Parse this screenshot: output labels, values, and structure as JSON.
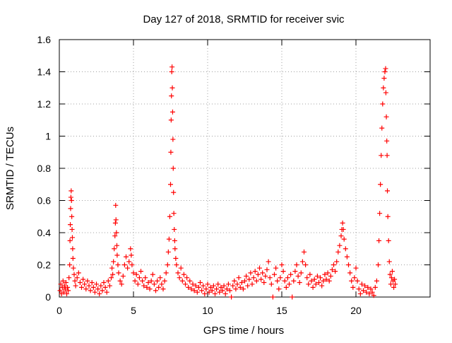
{
  "chart_data": {
    "type": "scatter",
    "title": "Day 127 of 2018, SRMTID for receiver svic",
    "xlabel": "GPS time / hours",
    "ylabel": "SRMTID / TECUs",
    "xlim": [
      0,
      25
    ],
    "ylim": [
      0,
      1.6
    ],
    "xticks": [
      0,
      5,
      10,
      15,
      20
    ],
    "yticks": [
      0,
      0.2,
      0.4,
      0.6,
      0.8,
      1,
      1.2,
      1.4,
      1.6
    ],
    "xtick_labels": [
      "0",
      "5",
      "10",
      "15",
      "20"
    ],
    "ytick_labels": [
      "0",
      "0.2",
      "0.4",
      "0.6",
      "0.8",
      "1",
      "1.2",
      "1.4",
      "1.6"
    ],
    "grid": true,
    "marker": "+",
    "series_color": "#ff0000",
    "series": [
      {
        "name": "SRMTID",
        "points": [
          [
            0.05,
            0.04
          ],
          [
            0.1,
            0.08
          ],
          [
            0.15,
            0.02
          ],
          [
            0.2,
            0.06
          ],
          [
            0.25,
            0.1
          ],
          [
            0.3,
            0.03
          ],
          [
            0.35,
            0.07
          ],
          [
            0.4,
            0.05
          ],
          [
            0.45,
            0.09
          ],
          [
            0.5,
            0.02
          ],
          [
            0.55,
            0.06
          ],
          [
            0.6,
            0.04
          ],
          [
            0.65,
            0.12
          ],
          [
            0.7,
            0.2
          ],
          [
            0.72,
            0.35
          ],
          [
            0.74,
            0.45
          ],
          [
            0.76,
            0.55
          ],
          [
            0.78,
            0.62
          ],
          [
            0.8,
            0.66
          ],
          [
            0.82,
            0.6
          ],
          [
            0.84,
            0.5
          ],
          [
            0.86,
            0.42
          ],
          [
            0.88,
            0.37
          ],
          [
            0.9,
            0.3
          ],
          [
            0.92,
            0.24
          ],
          [
            0.95,
            0.18
          ],
          [
            1.0,
            0.14
          ],
          [
            1.05,
            0.1
          ],
          [
            1.1,
            0.07
          ],
          [
            1.2,
            0.12
          ],
          [
            1.3,
            0.15
          ],
          [
            1.4,
            0.09
          ],
          [
            1.5,
            0.06
          ],
          [
            1.6,
            0.11
          ],
          [
            1.7,
            0.08
          ],
          [
            1.8,
            0.05
          ],
          [
            1.9,
            0.1
          ],
          [
            2.0,
            0.07
          ],
          [
            2.1,
            0.04
          ],
          [
            2.2,
            0.09
          ],
          [
            2.3,
            0.06
          ],
          [
            2.4,
            0.03
          ],
          [
            2.5,
            0.08
          ],
          [
            2.6,
            0.05
          ],
          [
            2.7,
            0.02
          ],
          [
            2.8,
            0.07
          ],
          [
            2.9,
            0.04
          ],
          [
            3.0,
            0.09
          ],
          [
            3.1,
            0.06
          ],
          [
            3.2,
            0.03
          ],
          [
            3.3,
            0.1
          ],
          [
            3.4,
            0.07
          ],
          [
            3.5,
            0.12
          ],
          [
            3.55,
            0.18
          ],
          [
            3.6,
            0.14
          ],
          [
            3.65,
            0.22
          ],
          [
            3.7,
            0.3
          ],
          [
            3.75,
            0.38
          ],
          [
            3.78,
            0.46
          ],
          [
            3.8,
            0.57
          ],
          [
            3.82,
            0.48
          ],
          [
            3.85,
            0.4
          ],
          [
            3.88,
            0.32
          ],
          [
            3.9,
            0.26
          ],
          [
            3.95,
            0.2
          ],
          [
            4.0,
            0.15
          ],
          [
            4.1,
            0.1
          ],
          [
            4.2,
            0.08
          ],
          [
            4.3,
            0.13
          ],
          [
            4.4,
            0.2
          ],
          [
            4.5,
            0.25
          ],
          [
            4.6,
            0.18
          ],
          [
            4.7,
            0.22
          ],
          [
            4.8,
            0.3
          ],
          [
            4.85,
            0.26
          ],
          [
            4.9,
            0.2
          ],
          [
            5.0,
            0.15
          ],
          [
            5.1,
            0.1
          ],
          [
            5.2,
            0.14
          ],
          [
            5.3,
            0.08
          ],
          [
            5.4,
            0.12
          ],
          [
            5.5,
            0.16
          ],
          [
            5.6,
            0.1
          ],
          [
            5.7,
            0.07
          ],
          [
            5.8,
            0.12
          ],
          [
            5.9,
            0.06
          ],
          [
            6.0,
            0.09
          ],
          [
            6.1,
            0.05
          ],
          [
            6.2,
            0.1
          ],
          [
            6.3,
            0.14
          ],
          [
            6.4,
            0.08
          ],
          [
            6.5,
            0.04
          ],
          [
            6.6,
            0.1
          ],
          [
            6.7,
            0.06
          ],
          [
            6.8,
            0.12
          ],
          [
            6.9,
            0.08
          ],
          [
            7.0,
            0.05
          ],
          [
            7.1,
            0.1
          ],
          [
            7.2,
            0.15
          ],
          [
            7.3,
            0.2
          ],
          [
            7.35,
            0.28
          ],
          [
            7.4,
            0.36
          ],
          [
            7.45,
            0.5
          ],
          [
            7.5,
            0.7
          ],
          [
            7.52,
            0.9
          ],
          [
            7.54,
            1.1
          ],
          [
            7.56,
            1.25
          ],
          [
            7.58,
            1.4
          ],
          [
            7.6,
            1.43
          ],
          [
            7.62,
            1.3
          ],
          [
            7.64,
            1.15
          ],
          [
            7.66,
            0.98
          ],
          [
            7.68,
            0.8
          ],
          [
            7.7,
            0.65
          ],
          [
            7.72,
            0.52
          ],
          [
            7.75,
            0.42
          ],
          [
            7.78,
            0.35
          ],
          [
            7.8,
            0.3
          ],
          [
            7.85,
            0.24
          ],
          [
            7.9,
            0.2
          ],
          [
            8.0,
            0.15
          ],
          [
            8.1,
            0.12
          ],
          [
            8.2,
            0.18
          ],
          [
            8.3,
            0.1
          ],
          [
            8.4,
            0.14
          ],
          [
            8.5,
            0.08
          ],
          [
            8.6,
            0.12
          ],
          [
            8.7,
            0.06
          ],
          [
            8.8,
            0.1
          ],
          [
            8.9,
            0.05
          ],
          [
            9.0,
            0.08
          ],
          [
            9.1,
            0.04
          ],
          [
            9.2,
            0.07
          ],
          [
            9.3,
            0.03
          ],
          [
            9.4,
            0.06
          ],
          [
            9.5,
            0.09
          ],
          [
            9.6,
            0.04
          ],
          [
            9.7,
            0.07
          ],
          [
            9.8,
            0.02
          ],
          [
            9.9,
            0.05
          ],
          [
            10.0,
            0.08
          ],
          [
            10.1,
            0.03
          ],
          [
            10.2,
            0.06
          ],
          [
            10.3,
            0.04
          ],
          [
            10.4,
            0.07
          ],
          [
            10.5,
            0.02
          ],
          [
            10.6,
            0.05
          ],
          [
            10.7,
            0.08
          ],
          [
            10.8,
            0.03
          ],
          [
            10.9,
            0.06
          ],
          [
            11.0,
            0.04
          ],
          [
            11.1,
            0.07
          ],
          [
            11.2,
            0.02
          ],
          [
            11.3,
            0.05
          ],
          [
            11.4,
            0.08
          ],
          [
            11.5,
            0.04
          ],
          [
            11.6,
            0.0
          ],
          [
            11.7,
            0.07
          ],
          [
            11.8,
            0.1
          ],
          [
            11.9,
            0.05
          ],
          [
            12.0,
            0.08
          ],
          [
            12.1,
            0.12
          ],
          [
            12.2,
            0.06
          ],
          [
            12.3,
            0.09
          ],
          [
            12.4,
            0.05
          ],
          [
            12.5,
            0.1
          ],
          [
            12.6,
            0.13
          ],
          [
            12.7,
            0.07
          ],
          [
            12.8,
            0.11
          ],
          [
            12.9,
            0.15
          ],
          [
            13.0,
            0.08
          ],
          [
            13.1,
            0.12
          ],
          [
            13.2,
            0.16
          ],
          [
            13.3,
            0.1
          ],
          [
            13.4,
            0.14
          ],
          [
            13.5,
            0.18
          ],
          [
            13.6,
            0.11
          ],
          [
            13.7,
            0.15
          ],
          [
            13.8,
            0.09
          ],
          [
            13.9,
            0.13
          ],
          [
            14.0,
            0.17
          ],
          [
            14.1,
            0.22
          ],
          [
            14.2,
            0.12
          ],
          [
            14.3,
            0.08
          ],
          [
            14.4,
            0.0
          ],
          [
            14.5,
            0.14
          ],
          [
            14.6,
            0.18
          ],
          [
            14.7,
            0.1
          ],
          [
            14.8,
            0.05
          ],
          [
            14.9,
            0.12
          ],
          [
            15.0,
            0.2
          ],
          [
            15.1,
            0.16
          ],
          [
            15.2,
            0.1
          ],
          [
            15.3,
            0.06
          ],
          [
            15.4,
            0.12
          ],
          [
            15.5,
            0.08
          ],
          [
            15.6,
            0.14
          ],
          [
            15.7,
            0.0
          ],
          [
            15.8,
            0.1
          ],
          [
            15.9,
            0.16
          ],
          [
            16.0,
            0.2
          ],
          [
            16.1,
            0.13
          ],
          [
            16.2,
            0.09
          ],
          [
            16.3,
            0.15
          ],
          [
            16.4,
            0.22
          ],
          [
            16.5,
            0.28
          ],
          [
            16.6,
            0.2
          ],
          [
            16.7,
            0.12
          ],
          [
            16.8,
            0.08
          ],
          [
            16.9,
            0.14
          ],
          [
            17.0,
            0.1
          ],
          [
            17.1,
            0.06
          ],
          [
            17.2,
            0.11
          ],
          [
            17.3,
            0.08
          ],
          [
            17.4,
            0.13
          ],
          [
            17.5,
            0.09
          ],
          [
            17.6,
            0.12
          ],
          [
            17.7,
            0.07
          ],
          [
            17.8,
            0.1
          ],
          [
            17.9,
            0.14
          ],
          [
            18.0,
            0.11
          ],
          [
            18.1,
            0.15
          ],
          [
            18.2,
            0.1
          ],
          [
            18.3,
            0.13
          ],
          [
            18.4,
            0.17
          ],
          [
            18.5,
            0.2
          ],
          [
            18.6,
            0.16
          ],
          [
            18.7,
            0.22
          ],
          [
            18.8,
            0.28
          ],
          [
            18.9,
            0.32
          ],
          [
            19.0,
            0.38
          ],
          [
            19.05,
            0.42
          ],
          [
            19.1,
            0.46
          ],
          [
            19.15,
            0.42
          ],
          [
            19.2,
            0.36
          ],
          [
            19.3,
            0.3
          ],
          [
            19.4,
            0.25
          ],
          [
            19.5,
            0.2
          ],
          [
            19.6,
            0.15
          ],
          [
            19.7,
            0.1
          ],
          [
            19.8,
            0.06
          ],
          [
            19.9,
            0.12
          ],
          [
            20.0,
            0.18
          ],
          [
            20.1,
            0.1
          ],
          [
            20.2,
            0.05
          ],
          [
            20.3,
            0.02
          ],
          [
            20.4,
            0.08
          ],
          [
            20.5,
            0.04
          ],
          [
            20.6,
            0.07
          ],
          [
            20.7,
            0.03
          ],
          [
            20.8,
            0.06
          ],
          [
            20.9,
            0.02
          ],
          [
            21.0,
            0.05
          ],
          [
            21.1,
            0.03
          ],
          [
            21.2,
            0.01
          ],
          [
            21.3,
            0.06
          ],
          [
            21.4,
            0.1
          ],
          [
            21.5,
            0.2
          ],
          [
            21.55,
            0.35
          ],
          [
            21.6,
            0.52
          ],
          [
            21.65,
            0.7
          ],
          [
            21.7,
            0.88
          ],
          [
            21.75,
            1.05
          ],
          [
            21.8,
            1.2
          ],
          [
            21.85,
            1.3
          ],
          [
            21.9,
            1.36
          ],
          [
            21.95,
            1.4
          ],
          [
            22.0,
            1.42
          ],
          [
            22.02,
            1.27
          ],
          [
            22.05,
            1.12
          ],
          [
            22.08,
            0.97
          ],
          [
            22.1,
            0.88
          ],
          [
            22.12,
            0.66
          ],
          [
            22.15,
            0.5
          ],
          [
            22.2,
            0.35
          ],
          [
            22.25,
            0.22
          ],
          [
            22.3,
            0.14
          ],
          [
            22.35,
            0.08
          ],
          [
            22.4,
            0.12
          ],
          [
            22.45,
            0.16
          ],
          [
            22.5,
            0.1
          ],
          [
            22.55,
            0.06
          ],
          [
            22.6,
            0.11
          ],
          [
            22.65,
            0.08
          ]
        ]
      }
    ]
  }
}
